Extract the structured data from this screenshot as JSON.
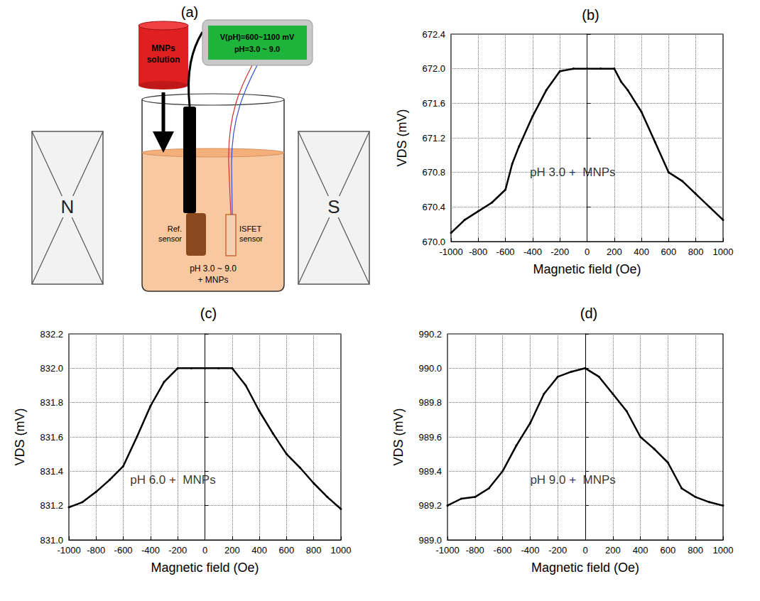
{
  "diagram": {
    "title": "(a)",
    "magnets": {
      "left": "N",
      "right": "S"
    },
    "reservoir": [
      "MNPs",
      "solution"
    ],
    "display": [
      "V(pH)=600~1100 mV",
      "pH=3.0 ~ 9.0"
    ],
    "reference_sensor": [
      "Ref.",
      "sensor"
    ],
    "isfet_sensor": [
      "ISFET",
      "sensor"
    ],
    "solution": [
      "pH 3.0 ~ 9.0",
      "+ MNPs"
    ]
  },
  "chart_data": [
    {
      "type": "line",
      "title": "(b)",
      "x_label": "Magnetic field (Oe)",
      "y_label": "VDS (mV)",
      "x": [
        -1000,
        -900,
        -800,
        -700,
        -600,
        -550,
        -500,
        -400,
        -300,
        -200,
        -100,
        0,
        100,
        200,
        250,
        300,
        400,
        500,
        600,
        700,
        800,
        900,
        1000
      ],
      "values": [
        670.1,
        670.25,
        670.35,
        670.45,
        670.6,
        670.9,
        671.1,
        671.45,
        671.75,
        671.97,
        672.0,
        672.0,
        672.0,
        672.0,
        671.85,
        671.75,
        671.5,
        671.15,
        670.8,
        670.7,
        670.55,
        670.4,
        670.25
      ],
      "color": "#000000",
      "marker": "circle",
      "line_style": "solid",
      "xlim": [
        -1000,
        1000
      ],
      "xticks": [
        -1000,
        -800,
        -600,
        -400,
        -200,
        0,
        200,
        400,
        600,
        800,
        1000
      ],
      "ylim": [
        670,
        672.4
      ],
      "yticks": [
        {
          "value": 670,
          "label": "670.0"
        },
        670.4,
        670.8,
        671.2,
        671.6,
        {
          "value": 672,
          "label": "672.0"
        },
        672.4
      ],
      "grid": true,
      "annotations": [
        {
          "text": "pH 3.0 +  MNPs",
          "x": -420,
          "y": 670.8
        }
      ]
    },
    {
      "type": "line",
      "title": "(c)",
      "x_label": "Magnetic field (Oe)",
      "y_label": "VDS (mV)",
      "x": [
        -1000,
        -900,
        -800,
        -700,
        -600,
        -500,
        -400,
        -300,
        -200,
        -100,
        0,
        100,
        200,
        300,
        400,
        500,
        600,
        700,
        800,
        900,
        1000
      ],
      "values": [
        831.19,
        831.22,
        831.28,
        831.35,
        831.43,
        831.6,
        831.78,
        831.92,
        832.0,
        832.0,
        832.0,
        832.0,
        832.0,
        831.9,
        831.75,
        831.62,
        831.5,
        831.42,
        831.33,
        831.25,
        831.18
      ],
      "color": "#000000",
      "marker": "circle",
      "line_style": "solid",
      "xlim": [
        -1000,
        1000
      ],
      "xticks": [
        -1000,
        -800,
        -600,
        -400,
        -200,
        0,
        200,
        400,
        600,
        800,
        1000
      ],
      "ylim": [
        831,
        832.2
      ],
      "yticks": [
        {
          "value": 831,
          "label": "831.0"
        },
        831.2,
        831.4,
        831.6,
        831.8,
        {
          "value": 832,
          "label": "832.0"
        },
        832.2
      ],
      "grid": true,
      "annotations": [
        {
          "text": "pH 6.0 +  MNPs",
          "x": -550,
          "y": 831.35
        }
      ]
    },
    {
      "type": "line",
      "title": "(d)",
      "x_label": "Magnetic field (Oe)",
      "y_label": "VDS (mV)",
      "x": [
        -1000,
        -900,
        -800,
        -700,
        -600,
        -500,
        -400,
        -300,
        -200,
        -100,
        0,
        100,
        200,
        300,
        400,
        500,
        600,
        700,
        800,
        900,
        1000
      ],
      "values": [
        989.2,
        989.24,
        989.25,
        989.3,
        989.4,
        989.55,
        989.68,
        989.85,
        989.95,
        989.98,
        990.0,
        989.95,
        989.85,
        989.75,
        989.6,
        989.53,
        989.45,
        989.3,
        989.25,
        989.22,
        989.2
      ],
      "color": "#000000",
      "marker": "circle",
      "line_style": "solid",
      "xlim": [
        -1000,
        1000
      ],
      "xticks": [
        -1000,
        -800,
        -600,
        -400,
        -200,
        0,
        200,
        400,
        600,
        800,
        1000
      ],
      "ylim": [
        989,
        990.2
      ],
      "yticks": [
        {
          "value": 989,
          "label": "989.0"
        },
        989.2,
        989.4,
        989.6,
        989.8,
        {
          "value": 990,
          "label": "990.0"
        },
        990.2
      ],
      "grid": true,
      "annotations": [
        {
          "text": "pH 9.0 +  MNPs",
          "x": -400,
          "y": 989.35
        }
      ]
    }
  ]
}
